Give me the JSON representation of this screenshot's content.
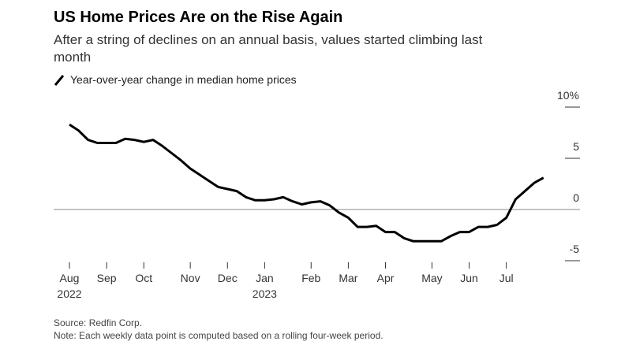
{
  "chart_data": {
    "type": "line",
    "title": "US Home Prices Are on the Rise Again",
    "subtitle": "After a string of declines on an annual basis, values started climbing last month",
    "source": "Source: Redfin Corp.",
    "note": "Note: Each weekly data point is computed based on a rolling four-week period.",
    "categories": [
      "Aug 2022",
      null,
      null,
      null,
      "Sep",
      null,
      null,
      null,
      "Oct",
      null,
      null,
      null,
      null,
      "Nov",
      null,
      null,
      null,
      "Dec",
      null,
      null,
      null,
      "Jan 2023",
      null,
      null,
      null,
      null,
      "Feb",
      null,
      null,
      null,
      "Mar",
      null,
      null,
      null,
      "Apr",
      null,
      null,
      null,
      null,
      "May",
      null,
      null,
      null,
      "Jun",
      null,
      null,
      null,
      "Jul",
      null,
      null,
      null,
      null
    ],
    "series": [
      {
        "name": "Year-over-year change in median home prices",
        "color": "#000000",
        "values": [
          8.3,
          7.7,
          6.8,
          6.5,
          6.5,
          6.5,
          6.9,
          6.8,
          6.6,
          6.8,
          6.2,
          5.5,
          4.8,
          4.0,
          3.4,
          2.8,
          2.2,
          2.0,
          1.8,
          1.2,
          0.9,
          0.9,
          1.0,
          1.2,
          0.8,
          0.5,
          0.7,
          0.8,
          0.4,
          -0.3,
          -0.8,
          -1.7,
          -1.7,
          -1.6,
          -2.2,
          -2.2,
          -2.8,
          -3.1,
          -3.1,
          -3.1,
          -3.1,
          -2.6,
          -2.2,
          -2.2,
          -1.7,
          -1.7,
          -1.5,
          -0.8,
          1.0,
          1.8,
          2.6,
          3.1
        ]
      }
    ],
    "ylim": [
      -5,
      10
    ],
    "yticks": [
      {
        "value": 10,
        "label": "10%"
      },
      5,
      0,
      -5
    ]
  }
}
